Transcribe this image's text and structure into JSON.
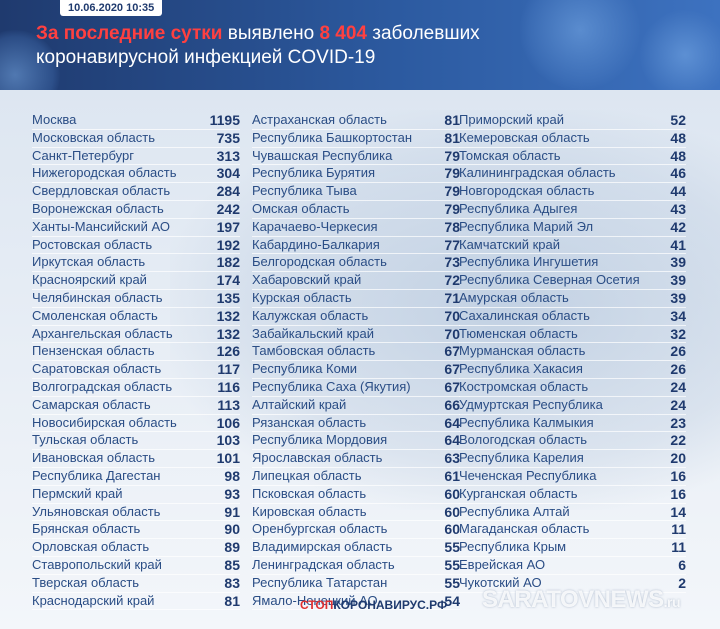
{
  "date": "10.06.2020 10:35",
  "headline": {
    "part1": "За последние сутки",
    "part2": " выявлено ",
    "count": "8 404",
    "part3": " заболевших",
    "line2": "коронавирусной инфекцией COVID-19"
  },
  "columns": [
    [
      {
        "name": "Москва",
        "value": "1195"
      },
      {
        "name": "Московская область",
        "value": "735"
      },
      {
        "name": "Санкт-Петербург",
        "value": "313"
      },
      {
        "name": "Нижегородская область",
        "value": "304"
      },
      {
        "name": "Свердловская область",
        "value": "284"
      },
      {
        "name": "Воронежская область",
        "value": "242"
      },
      {
        "name": "Ханты-Мансийский АО",
        "value": "197"
      },
      {
        "name": "Ростовская область",
        "value": "192"
      },
      {
        "name": "Иркутская область",
        "value": "182"
      },
      {
        "name": "Красноярский край",
        "value": "174"
      },
      {
        "name": "Челябинская область",
        "value": "135"
      },
      {
        "name": "Смоленская область",
        "value": "132"
      },
      {
        "name": "Архангельская область",
        "value": "132"
      },
      {
        "name": "Пензенская область",
        "value": "126"
      },
      {
        "name": "Саратовская область",
        "value": "117"
      },
      {
        "name": "Волгоградская область",
        "value": "116"
      },
      {
        "name": "Самарская область",
        "value": "113"
      },
      {
        "name": "Новосибирская область",
        "value": "106"
      },
      {
        "name": "Тульская область",
        "value": "103"
      },
      {
        "name": "Ивановская область",
        "value": "101"
      },
      {
        "name": "Республика Дагестан",
        "value": "98"
      },
      {
        "name": "Пермский край",
        "value": "93"
      },
      {
        "name": "Ульяновская область",
        "value": "91"
      },
      {
        "name": "Брянская область",
        "value": "90"
      },
      {
        "name": "Орловская область",
        "value": "89"
      },
      {
        "name": "Ставропольский край",
        "value": "85"
      },
      {
        "name": "Тверская область",
        "value": "83"
      },
      {
        "name": "Краснодарский край",
        "value": "81"
      }
    ],
    [
      {
        "name": "Астраханская область",
        "value": "81"
      },
      {
        "name": "Республика Башкортостан",
        "value": "81"
      },
      {
        "name": "Чувашская Республика",
        "value": "79"
      },
      {
        "name": "Республика Бурятия",
        "value": "79"
      },
      {
        "name": "Республика Тыва",
        "value": "79"
      },
      {
        "name": "Омская область",
        "value": "79"
      },
      {
        "name": "Карачаево-Черкесия",
        "value": "78"
      },
      {
        "name": "Кабардино-Балкария",
        "value": "77"
      },
      {
        "name": "Белгородская область",
        "value": "73"
      },
      {
        "name": "Хабаровский край",
        "value": "72"
      },
      {
        "name": "Курская область",
        "value": "71"
      },
      {
        "name": "Калужская область",
        "value": "70"
      },
      {
        "name": "Забайкальский край",
        "value": "70"
      },
      {
        "name": "Тамбовская область",
        "value": "67"
      },
      {
        "name": "Республика Коми",
        "value": "67"
      },
      {
        "name": "Республика Саха (Якутия)",
        "value": "67"
      },
      {
        "name": "Алтайский край",
        "value": "66"
      },
      {
        "name": "Рязанская область",
        "value": "64"
      },
      {
        "name": "Республика Мордовия",
        "value": "64"
      },
      {
        "name": "Ярославская область",
        "value": "63"
      },
      {
        "name": "Липецкая область",
        "value": "61"
      },
      {
        "name": "Псковская область",
        "value": "60"
      },
      {
        "name": "Кировская область",
        "value": "60"
      },
      {
        "name": "Оренбургская область",
        "value": "60"
      },
      {
        "name": "Владимирская область",
        "value": "55"
      },
      {
        "name": "Ленинградская область",
        "value": "55"
      },
      {
        "name": "Республика Татарстан",
        "value": "55"
      },
      {
        "name": "Ямало-Ненецкий АО",
        "value": "54"
      }
    ],
    [
      {
        "name": "Приморский край",
        "value": "52"
      },
      {
        "name": "Кемеровская область",
        "value": "48"
      },
      {
        "name": "Томская область",
        "value": "48"
      },
      {
        "name": "Калининградская область",
        "value": "46"
      },
      {
        "name": "Новгородская область",
        "value": "44"
      },
      {
        "name": "Республика Адыгея",
        "value": "43"
      },
      {
        "name": "Республика Марий Эл",
        "value": "42"
      },
      {
        "name": "Камчатский край",
        "value": "41"
      },
      {
        "name": "Республика Ингушетия",
        "value": "39"
      },
      {
        "name": "Республика Северная Осетия",
        "value": "39"
      },
      {
        "name": "Амурская область",
        "value": "39"
      },
      {
        "name": "Сахалинская область",
        "value": "34"
      },
      {
        "name": "Тюменская область",
        "value": "32"
      },
      {
        "name": "Мурманская область",
        "value": "26"
      },
      {
        "name": "Республика Хакасия",
        "value": "26"
      },
      {
        "name": "Костромская область",
        "value": "24"
      },
      {
        "name": "Удмуртская Республика",
        "value": "24"
      },
      {
        "name": "Республика Калмыкия",
        "value": "23"
      },
      {
        "name": "Вологодская область",
        "value": "22"
      },
      {
        "name": "Республика Карелия",
        "value": "20"
      },
      {
        "name": "Чеченская Республика",
        "value": "16"
      },
      {
        "name": "Курганская область",
        "value": "16"
      },
      {
        "name": "Республика Алтай",
        "value": "14"
      },
      {
        "name": "Магаданская область",
        "value": "11"
      },
      {
        "name": "Республика Крым",
        "value": "11"
      },
      {
        "name": "Еврейская АО",
        "value": "6"
      },
      {
        "name": "Чукотский АО",
        "value": "2"
      }
    ]
  ],
  "footer": {
    "logo_accent": "СТОП",
    "logo_rest": "КОРОНАВИРУС.РФ",
    "watermark": "SARATOVNEWS",
    "watermark_suffix": ".ru"
  },
  "colors": {
    "header_bg": "#1f3a6e",
    "accent_red": "#ff4040",
    "region_text": "#2a4d85",
    "number_text": "#1f3a6e"
  }
}
